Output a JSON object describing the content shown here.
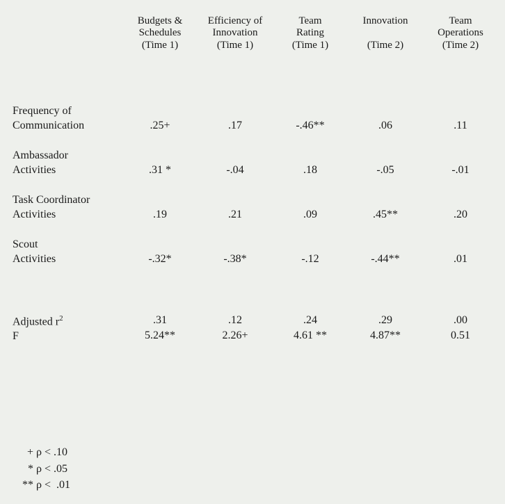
{
  "table": {
    "type": "table",
    "background_color": "#eef0ec",
    "text_color": "#1a1a1a",
    "font_family": "Times New Roman",
    "columns": [
      {
        "label_lines": [
          "Budgets &",
          "Schedules",
          "(Time 1)"
        ]
      },
      {
        "label_lines": [
          "Efficiency of",
          "Innovation",
          "(Time 1)"
        ]
      },
      {
        "label_lines": [
          "Team",
          "Rating",
          "(Time 1)"
        ]
      },
      {
        "label_lines": [
          "Innovation",
          "",
          "(Time 2)"
        ]
      },
      {
        "label_lines": [
          "Team",
          "Operations",
          "(Time 2)"
        ]
      }
    ],
    "rows": [
      {
        "label_lines": [
          "Frequency of",
          "Communication"
        ],
        "values": [
          ".25+",
          ".17",
          "-.46**",
          ".06",
          ".11"
        ]
      },
      {
        "label_lines": [
          "Ambassador",
          "Activities"
        ],
        "values": [
          ".31 *",
          "-.04",
          ".18",
          "-.05",
          "-.01"
        ]
      },
      {
        "label_lines": [
          "Task Coordinator",
          "Activities"
        ],
        "values": [
          ".19",
          ".21",
          ".09",
          ".45**",
          ".20"
        ]
      },
      {
        "label_lines": [
          "Scout",
          "Activities"
        ],
        "values": [
          "-.32*",
          "-.38*",
          "-.12",
          "-.44**",
          ".01"
        ]
      }
    ],
    "summary": [
      {
        "label": "Adjusted r",
        "label_sup": "2",
        "values": [
          ".31",
          ".12",
          ".24",
          ".29",
          ".00"
        ]
      },
      {
        "label": "F",
        "values": [
          "5.24**",
          "2.26+",
          "4.61 **",
          "4.87**",
          "0.51"
        ]
      }
    ]
  },
  "footnotes": [
    {
      "marker": "+",
      "text": "ρ < .10"
    },
    {
      "marker": "*",
      "text": "ρ < .05"
    },
    {
      "marker": "**",
      "text": "ρ <  .01"
    }
  ]
}
